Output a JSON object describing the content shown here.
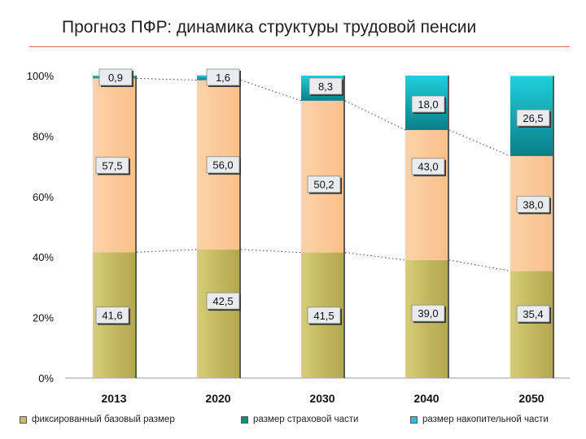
{
  "title": "Прогноз ПФР: динамика структуры трудовой пенсии",
  "colors": {
    "base": "#c7bd66",
    "insurance": "#fbc796",
    "funded": "#20b3bd"
  },
  "chart_data": {
    "type": "bar",
    "stacked": true,
    "categories": [
      "2013",
      "2020",
      "2030",
      "2040",
      "2050"
    ],
    "series": [
      {
        "name": "фиксированный базовый размер",
        "values": [
          41.6,
          42.5,
          41.5,
          39.0,
          35.4
        ],
        "labels": [
          "41,6",
          "42,5",
          "41,5",
          "39,0",
          "35,4"
        ]
      },
      {
        "name": "размер страховой части",
        "values": [
          57.5,
          56.0,
          50.2,
          43.0,
          38.0
        ],
        "labels": [
          "57,5",
          "56,0",
          "50,2",
          "43,0",
          "38,0"
        ]
      },
      {
        "name": "размер накопительной части",
        "values": [
          0.9,
          1.6,
          8.3,
          18.0,
          26.5
        ],
        "labels": [
          "0,9",
          "1,6",
          "8,3",
          "18,0",
          "26,5"
        ]
      }
    ],
    "y_ticks": [
      "0%",
      "20%",
      "40%",
      "60%",
      "80%",
      "100%"
    ],
    "ylim": [
      0,
      100
    ],
    "legend_position": "bottom",
    "grid": false
  }
}
